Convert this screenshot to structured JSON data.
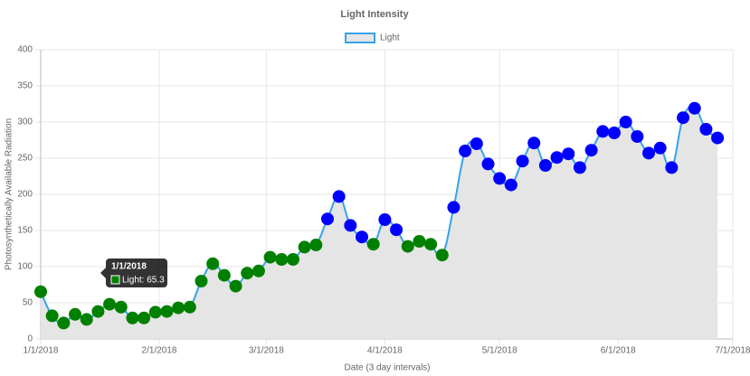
{
  "chart_data": {
    "type": "line",
    "title": "Light Intensity",
    "x_label": "Date (3 day intervals)",
    "y_label": "Photosynthetically Available Radiation",
    "x": [
      "1/1/2018",
      "1/4/2018",
      "1/7/2018",
      "1/10/2018",
      "1/13/2018",
      "1/16/2018",
      "1/19/2018",
      "1/22/2018",
      "1/25/2018",
      "1/28/2018",
      "1/31/2018",
      "2/3/2018",
      "2/6/2018",
      "2/9/2018",
      "2/12/2018",
      "2/15/2018",
      "2/18/2018",
      "2/21/2018",
      "2/24/2018",
      "2/27/2018",
      "3/2/2018",
      "3/5/2018",
      "3/8/2018",
      "3/11/2018",
      "3/14/2018",
      "3/17/2018",
      "3/20/2018",
      "3/23/2018",
      "3/26/2018",
      "3/29/2018",
      "4/1/2018",
      "4/4/2018",
      "4/7/2018",
      "4/10/2018",
      "4/13/2018",
      "4/16/2018",
      "4/19/2018",
      "4/22/2018",
      "4/25/2018",
      "4/28/2018",
      "5/1/2018",
      "5/4/2018",
      "5/7/2018",
      "5/10/2018",
      "5/13/2018",
      "5/16/2018",
      "5/19/2018",
      "5/22/2018",
      "5/25/2018",
      "5/28/2018",
      "5/31/2018",
      "6/3/2018",
      "6/6/2018",
      "6/9/2018",
      "6/12/2018",
      "6/15/2018",
      "6/18/2018",
      "6/21/2018",
      "6/24/2018",
      "6/27/2018"
    ],
    "series": [
      {
        "name": "Light",
        "color": "#36a2eb",
        "fill": "#e5e5e5",
        "values": [
          65.3,
          32,
          22,
          34,
          27,
          38,
          48,
          44,
          29,
          29,
          37,
          38,
          43,
          44,
          80,
          104,
          88,
          73,
          91,
          94,
          113,
          110,
          110,
          127,
          130,
          166,
          197,
          157,
          141,
          131,
          165,
          151,
          128,
          135,
          131,
          116,
          182,
          260,
          270,
          242,
          222,
          213,
          246,
          271,
          240,
          251,
          256,
          237,
          261,
          287,
          285,
          300,
          280,
          257,
          264,
          237,
          306,
          319,
          290,
          278
        ],
        "point_colors": [
          "#008000",
          "#008000",
          "#008000",
          "#008000",
          "#008000",
          "#008000",
          "#008000",
          "#008000",
          "#008000",
          "#008000",
          "#008000",
          "#008000",
          "#008000",
          "#008000",
          "#008000",
          "#008000",
          "#008000",
          "#008000",
          "#008000",
          "#008000",
          "#008000",
          "#008000",
          "#008000",
          "#008000",
          "#008000",
          "#0000ff",
          "#0000ff",
          "#0000ff",
          "#0000ff",
          "#008000",
          "#0000ff",
          "#0000ff",
          "#008000",
          "#008000",
          "#008000",
          "#008000",
          "#0000ff",
          "#0000ff",
          "#0000ff",
          "#0000ff",
          "#0000ff",
          "#0000ff",
          "#0000ff",
          "#0000ff",
          "#0000ff",
          "#0000ff",
          "#0000ff",
          "#0000ff",
          "#0000ff",
          "#0000ff",
          "#0000ff",
          "#0000ff",
          "#0000ff",
          "#0000ff",
          "#0000ff",
          "#0000ff",
          "#0000ff",
          "#0000ff",
          "#0000ff",
          "#0000ff"
        ]
      }
    ],
    "xlim": [
      "1/1/2018",
      "7/1/2018"
    ],
    "xticks": [
      "1/1/2018",
      "2/1/2018",
      "3/1/2018",
      "4/1/2018",
      "5/1/2018",
      "6/1/2018",
      "7/1/2018"
    ],
    "ylim": [
      0,
      400
    ],
    "yticks": [
      0,
      50,
      100,
      150,
      200,
      250,
      300,
      350,
      400
    ],
    "grid": true,
    "legend": "top",
    "tooltip": {
      "title": "1/1/2018",
      "label": "Light: 65.3"
    }
  }
}
